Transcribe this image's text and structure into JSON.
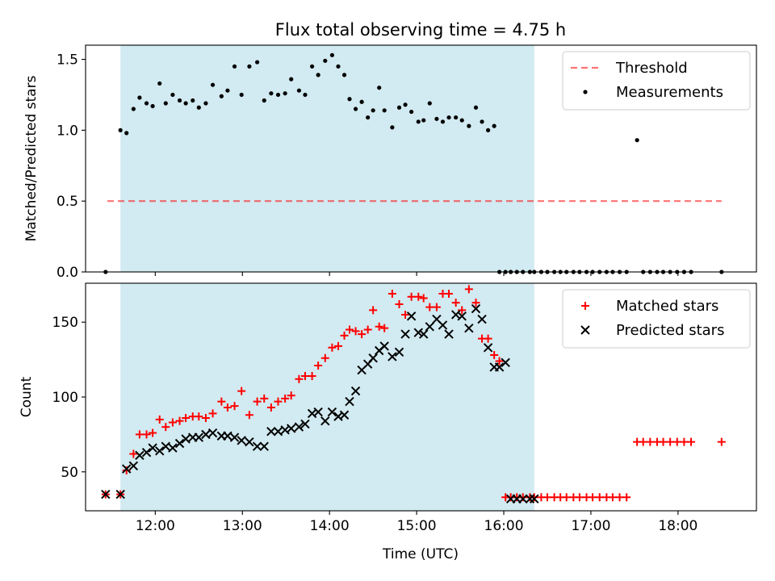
{
  "chart_data": {
    "type": "scatter",
    "title": "Flux total observing time = 4.75 h",
    "xlabel": "Time (UTC)",
    "x_unit": "hours UTC",
    "xlim": [
      11.2,
      18.9
    ],
    "x_ticks": [
      12,
      13,
      14,
      15,
      16,
      17,
      18
    ],
    "x_tick_labels": [
      "12:00",
      "13:00",
      "14:00",
      "15:00",
      "16:00",
      "17:00",
      "18:00"
    ],
    "shaded_span": [
      11.6,
      16.35
    ],
    "shade_color": "#add8e6",
    "panels": [
      {
        "ylabel": "Matched/Predicted stars",
        "ylim": [
          0,
          1.6
        ],
        "y_ticks": [
          0.0,
          0.5,
          1.0,
          1.5
        ],
        "y_tick_labels": [
          "0.0",
          "0.5",
          "1.0",
          "1.5"
        ],
        "legend_position": "upper right",
        "threshold": {
          "name": "Threshold",
          "y": 0.5,
          "x": [
            11.45,
            18.5
          ],
          "color": "#ff0000",
          "style": "dashed"
        },
        "series": [
          {
            "name": "Measurements",
            "marker": "dot",
            "color": "#000000",
            "x": [
              11.43,
              11.6,
              11.67,
              11.75,
              11.82,
              11.9,
              11.97,
              12.05,
              12.12,
              12.2,
              12.28,
              12.35,
              12.43,
              12.5,
              12.58,
              12.66,
              12.76,
              12.83,
              12.91,
              12.99,
              13.08,
              13.17,
              13.25,
              13.33,
              13.41,
              13.49,
              13.56,
              13.65,
              13.72,
              13.8,
              13.87,
              13.95,
              14.03,
              14.1,
              14.17,
              14.23,
              14.3,
              14.37,
              14.44,
              14.5,
              14.57,
              14.63,
              14.72,
              14.8,
              14.87,
              14.94,
              15.02,
              15.08,
              15.15,
              15.23,
              15.3,
              15.37,
              15.45,
              15.52,
              15.6,
              15.68,
              15.75,
              15.82,
              15.89,
              15.95,
              16.02,
              16.08,
              16.15,
              16.22,
              16.3,
              16.35,
              16.43,
              16.5,
              16.58,
              16.65,
              16.72,
              16.8,
              16.87,
              16.95,
              17.02,
              17.1,
              17.18,
              17.25,
              17.33,
              17.41,
              17.53,
              17.6,
              17.68,
              17.76,
              17.83,
              17.91,
              17.99,
              18.07,
              18.15,
              18.5
            ],
            "y": [
              0.0,
              1.0,
              0.98,
              1.15,
              1.23,
              1.19,
              1.17,
              1.33,
              1.19,
              1.25,
              1.21,
              1.19,
              1.21,
              1.16,
              1.19,
              1.32,
              1.24,
              1.28,
              1.45,
              1.25,
              1.45,
              1.48,
              1.21,
              1.26,
              1.25,
              1.26,
              1.36,
              1.28,
              1.25,
              1.45,
              1.39,
              1.49,
              1.53,
              1.45,
              1.39,
              1.22,
              1.15,
              1.2,
              1.09,
              1.14,
              1.3,
              1.14,
              1.02,
              1.16,
              1.18,
              1.13,
              1.06,
              1.07,
              1.19,
              1.08,
              1.06,
              1.09,
              1.09,
              1.07,
              1.03,
              1.16,
              1.06,
              1.0,
              1.03,
              0.0,
              0.0,
              0.0,
              0.0,
              0.0,
              0.0,
              0.0,
              0.0,
              0.0,
              0.0,
              0.0,
              0.0,
              0.0,
              0.0,
              0.0,
              0.0,
              0.0,
              0.0,
              0.0,
              0.0,
              0.0,
              0.93,
              0.0,
              0.0,
              0.0,
              0.0,
              0.0,
              0.0,
              0.0,
              0.0,
              0.0
            ]
          }
        ]
      },
      {
        "ylabel": "Count",
        "ylim": [
          24,
          176
        ],
        "y_ticks": [
          50,
          100,
          150
        ],
        "y_tick_labels": [
          "50",
          "100",
          "150"
        ],
        "legend_position": "upper right",
        "series": [
          {
            "name": "Matched stars",
            "marker": "plus",
            "color": "#ff0000",
            "x": [
              11.43,
              11.6,
              11.67,
              11.75,
              11.82,
              11.9,
              11.97,
              12.05,
              12.12,
              12.2,
              12.28,
              12.35,
              12.43,
              12.5,
              12.58,
              12.66,
              12.76,
              12.83,
              12.91,
              12.99,
              13.08,
              13.17,
              13.25,
              13.33,
              13.41,
              13.49,
              13.56,
              13.65,
              13.72,
              13.8,
              13.87,
              13.95,
              14.03,
              14.1,
              14.17,
              14.23,
              14.3,
              14.37,
              14.44,
              14.5,
              14.57,
              14.63,
              14.72,
              14.8,
              14.87,
              14.94,
              15.02,
              15.08,
              15.15,
              15.23,
              15.3,
              15.37,
              15.45,
              15.52,
              15.6,
              15.68,
              15.75,
              15.82,
              15.89,
              15.95,
              16.02,
              16.08,
              16.15,
              16.22,
              16.3,
              16.35,
              16.43,
              16.5,
              16.58,
              16.65,
              16.72,
              16.8,
              16.87,
              16.95,
              17.02,
              17.1,
              17.18,
              17.25,
              17.33,
              17.41,
              17.53,
              17.6,
              17.68,
              17.76,
              17.83,
              17.91,
              17.99,
              18.07,
              18.15,
              18.5
            ],
            "y": [
              35,
              35,
              51,
              62,
              75,
              75,
              76,
              85,
              80,
              83,
              84,
              86,
              87,
              87,
              86,
              89,
              97,
              93,
              94,
              104,
              88,
              97,
              99,
              93,
              97,
              99,
              101,
              112,
              114,
              114,
              121,
              126,
              133,
              134,
              141,
              145,
              144,
              142,
              145,
              158,
              147,
              146,
              169,
              162,
              155,
              167,
              167,
              166,
              160,
              160,
              169,
              169,
              163,
              158,
              172,
              163,
              139,
              139,
              128,
              124,
              33,
              33,
              33,
              33,
              33,
              33,
              33,
              33,
              33,
              33,
              33,
              33,
              33,
              33,
              33,
              33,
              33,
              33,
              33,
              33,
              70,
              70,
              70,
              70,
              70,
              70,
              70,
              70,
              70,
              70
            ]
          },
          {
            "name": "Predicted stars",
            "marker": "x",
            "color": "#000000",
            "x": [
              11.43,
              11.6,
              11.67,
              11.75,
              11.82,
              11.9,
              11.97,
              12.05,
              12.12,
              12.2,
              12.28,
              12.35,
              12.43,
              12.5,
              12.58,
              12.66,
              12.76,
              12.83,
              12.91,
              12.99,
              13.08,
              13.17,
              13.25,
              13.33,
              13.41,
              13.49,
              13.56,
              13.65,
              13.72,
              13.8,
              13.87,
              13.95,
              14.03,
              14.1,
              14.17,
              14.23,
              14.3,
              14.37,
              14.44,
              14.5,
              14.57,
              14.63,
              14.72,
              14.8,
              14.87,
              14.94,
              15.02,
              15.08,
              15.15,
              15.23,
              15.3,
              15.37,
              15.45,
              15.52,
              15.6,
              15.68,
              15.75,
              15.82,
              15.89,
              15.95,
              16.02,
              16.08,
              16.15,
              16.22,
              16.3,
              16.35
            ],
            "y": [
              35,
              35,
              52,
              54,
              61,
              63,
              66,
              64,
              67,
              66,
              69,
              72,
              73,
              73,
              75,
              76,
              74,
              74,
              73,
              71,
              70,
              67,
              67,
              77,
              77,
              78,
              79,
              80,
              82,
              89,
              90,
              84,
              90,
              87,
              88,
              97,
              104,
              118,
              122,
              126,
              131,
              134,
              127,
              130,
              142,
              154,
              143,
              142,
              147,
              152,
              148,
              142,
              155,
              154,
              146,
              159,
              152,
              133,
              120,
              120,
              123,
              32,
              32,
              32,
              32,
              32
            ]
          }
        ]
      }
    ]
  }
}
